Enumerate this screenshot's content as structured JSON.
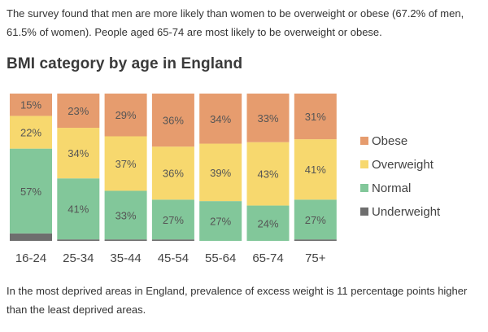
{
  "intro_text": "The survey found that men are more likely than women to be overweight or obese (67.2% of men, 61.5% of women). People aged 65-74 are most likely to be overweight or obese.",
  "outro_text": "In the most deprived areas in England, prevalence of excess weight is 11 percentage points higher than the least deprived areas.",
  "colors": {
    "Obese": "#e69c6e",
    "Overweight": "#f7d86e",
    "Normal": "#82c79a",
    "Underweight": "#6e6e6e"
  },
  "chart_data": {
    "type": "bar",
    "stacked": true,
    "title": "BMI category by age in England",
    "xlabel": "",
    "ylabel": "",
    "ylim": [
      0,
      100
    ],
    "categories": [
      "16-24",
      "25-34",
      "35-44",
      "45-54",
      "55-64",
      "65-74",
      "75+"
    ],
    "series": [
      {
        "name": "Underweight",
        "values": [
          5,
          1,
          1,
          1,
          0,
          0,
          1
        ],
        "labels": [
          "",
          "",
          "",
          "",
          "",
          "",
          ""
        ]
      },
      {
        "name": "Normal",
        "values": [
          57,
          41,
          33,
          27,
          27,
          24,
          27
        ],
        "labels": [
          "57%",
          "41%",
          "33%",
          "27%",
          "27%",
          "24%",
          "27%"
        ]
      },
      {
        "name": "Overweight",
        "values": [
          22,
          34,
          37,
          36,
          39,
          43,
          41
        ],
        "labels": [
          "22%",
          "34%",
          "37%",
          "36%",
          "39%",
          "43%",
          "41%"
        ]
      },
      {
        "name": "Obese",
        "values": [
          15,
          23,
          29,
          36,
          34,
          33,
          31
        ],
        "labels": [
          "15%",
          "23%",
          "29%",
          "36%",
          "34%",
          "33%",
          "31%"
        ]
      }
    ],
    "legend_position": "right",
    "legend_order": [
      "Obese",
      "Overweight",
      "Normal",
      "Underweight"
    ],
    "grid": false
  }
}
